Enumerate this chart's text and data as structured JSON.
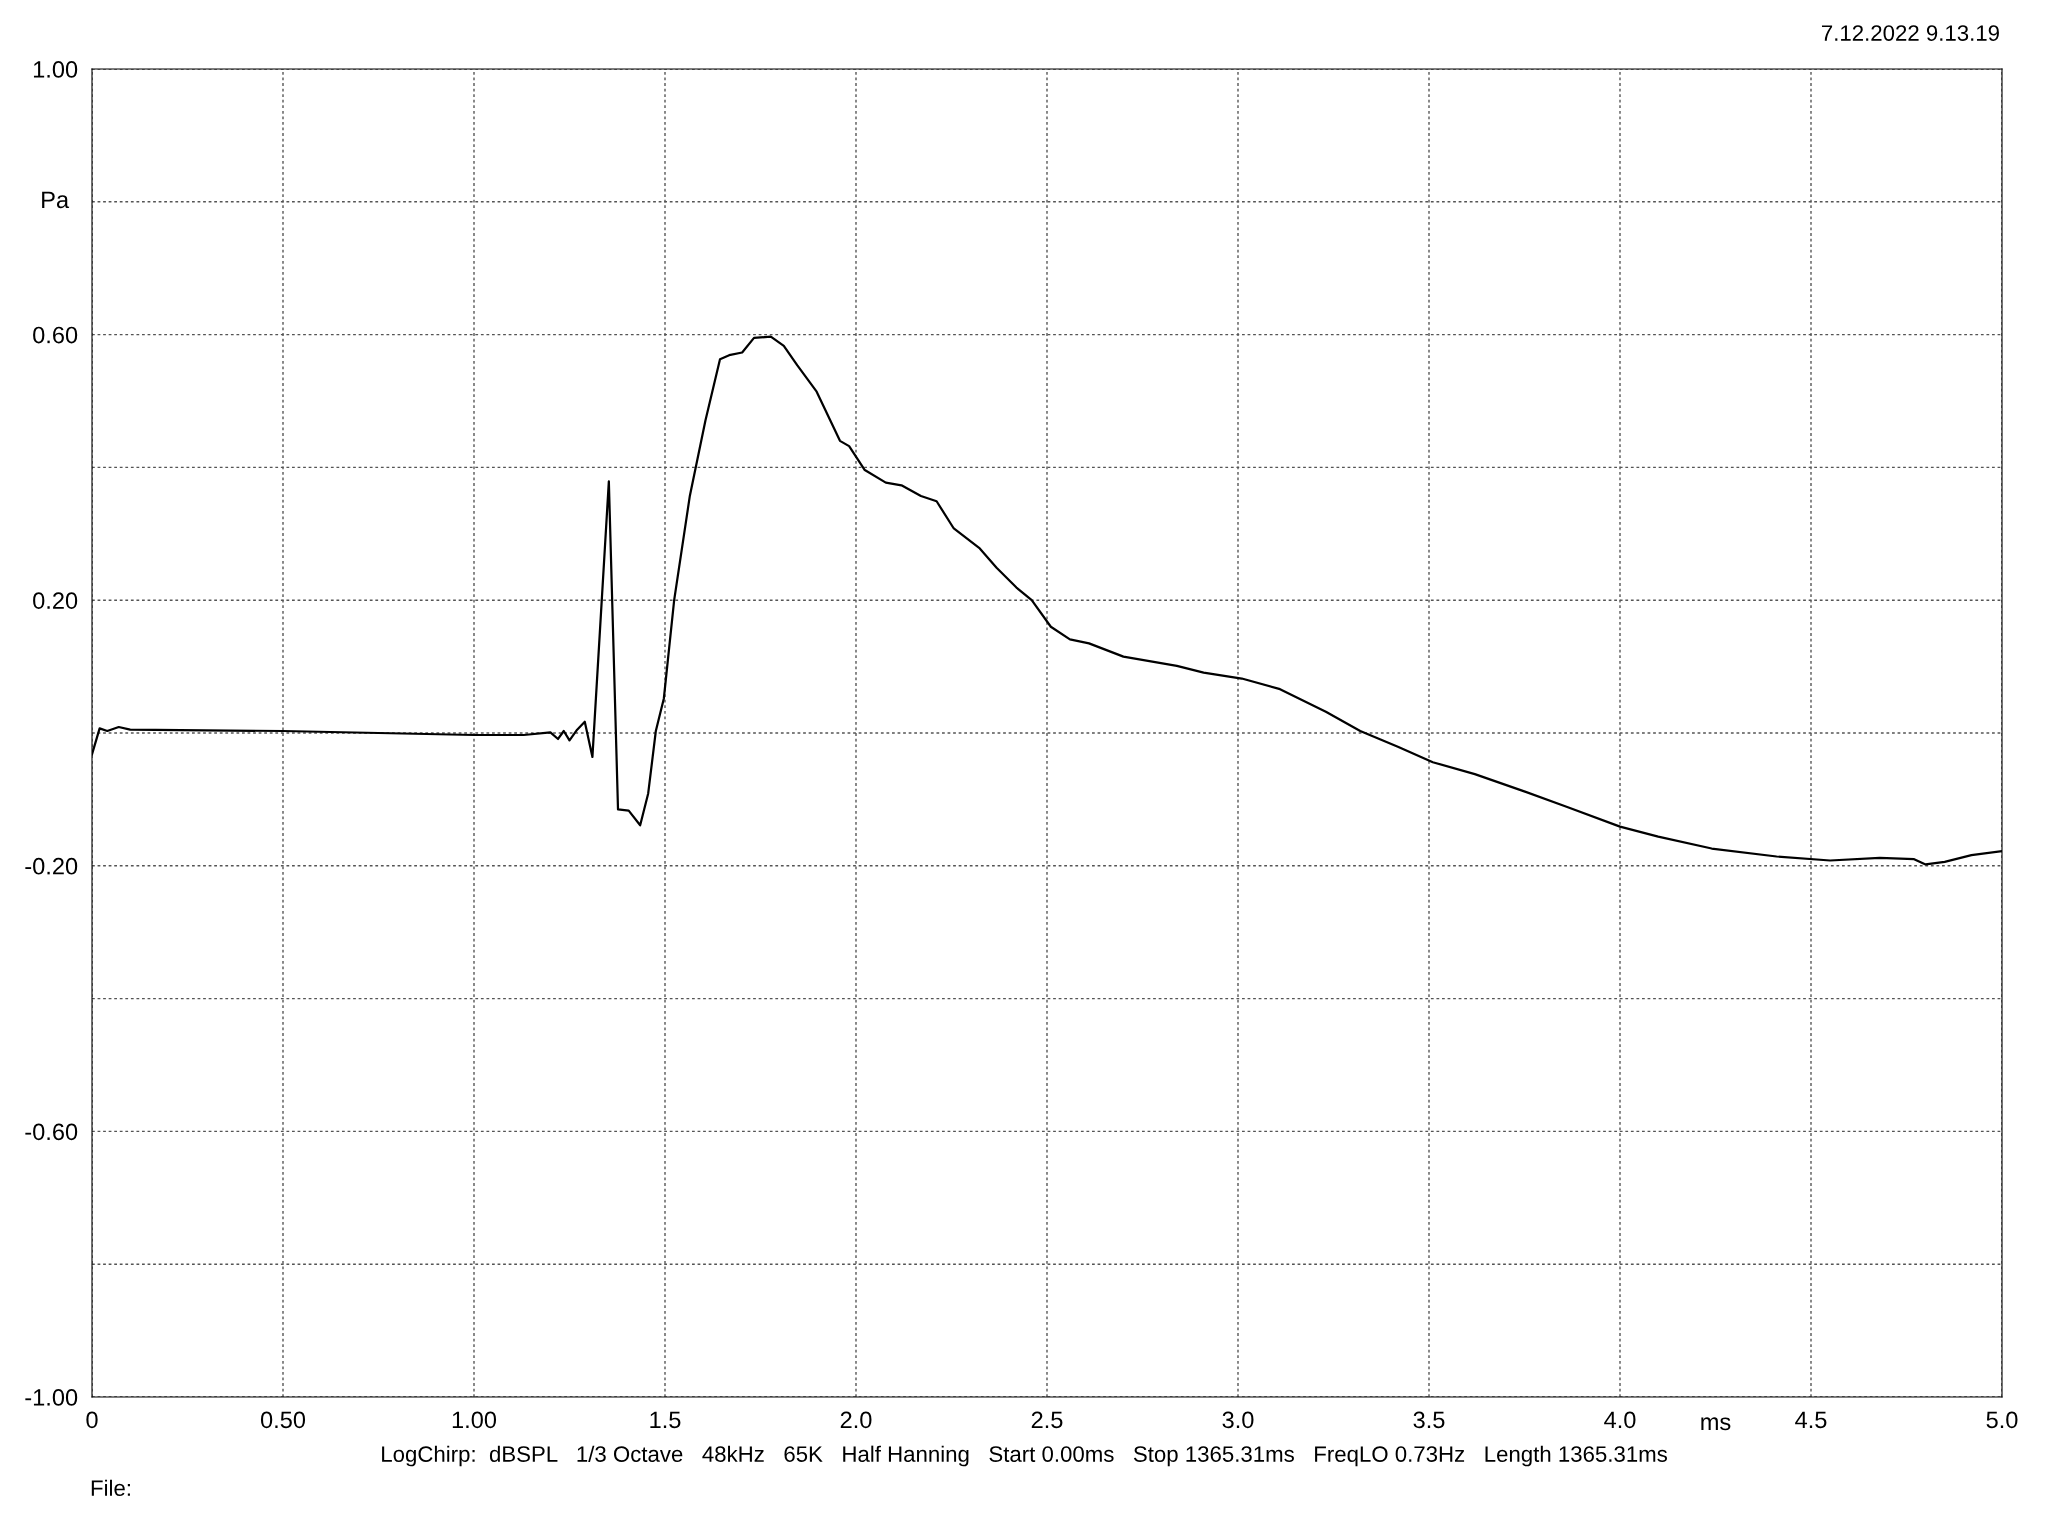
{
  "chart_data": {
    "type": "line",
    "xlabel": "ms",
    "ylabel": "Pa",
    "annotations": [
      "7.12.2022 9.13.19",
      "LogChirp:  dBSPL   1/3 Octave   48kHz   65K   Half Hanning   Start 0.00ms   Stop 1365.31ms   FreqLO 0.73Hz   Length 1365.31ms",
      "File:"
    ],
    "x": [
      0,
      0.02,
      0.04,
      0.07,
      0.1,
      0.5,
      1.0,
      1.13,
      1.2,
      1.22,
      1.235,
      1.25,
      1.27,
      1.29,
      1.31,
      1.353,
      1.377,
      1.405,
      1.435,
      1.456,
      1.476,
      1.497,
      1.524,
      1.565,
      1.606,
      1.644,
      1.668,
      1.702,
      1.733,
      1.777,
      1.811,
      1.846,
      1.897,
      1.958,
      1.982,
      2.023,
      2.078,
      2.119,
      2.17,
      2.211,
      2.256,
      2.324,
      2.368,
      2.42,
      2.46,
      2.51,
      2.56,
      2.61,
      2.7,
      2.84,
      2.91,
      3.01,
      3.11,
      3.23,
      3.32,
      3.42,
      3.51,
      3.62,
      3.74,
      3.86,
      4.0,
      4.1,
      4.24,
      4.41,
      4.55,
      4.68,
      4.77,
      4.8,
      4.85,
      4.92,
      5.0
    ],
    "series": [
      {
        "color": "#000000",
        "values": [
          -0.032,
          0.007,
          0.003,
          0.009,
          0.005,
          0.003,
          -0.003,
          -0.003,
          0.001,
          -0.009,
          0.003,
          -0.011,
          0.005,
          0.017,
          -0.036,
          0.379,
          -0.115,
          -0.117,
          -0.139,
          -0.091,
          0.003,
          0.052,
          0.2,
          0.357,
          0.471,
          0.563,
          0.569,
          0.573,
          0.595,
          0.597,
          0.583,
          0.554,
          0.514,
          0.44,
          0.432,
          0.396,
          0.377,
          0.373,
          0.357,
          0.349,
          0.308,
          0.278,
          0.249,
          0.219,
          0.2,
          0.16,
          0.141,
          0.135,
          0.115,
          0.101,
          0.091,
          0.082,
          0.066,
          0.032,
          0.003,
          -0.021,
          -0.044,
          -0.062,
          -0.086,
          -0.111,
          -0.141,
          -0.156,
          -0.174,
          -0.186,
          -0.192,
          -0.188,
          -0.19,
          -0.198,
          -0.194,
          -0.184,
          -0.178
        ]
      }
    ],
    "xlim": [
      0,
      5
    ],
    "ylim": [
      -1,
      1
    ],
    "xticks": [
      0,
      {
        "value": 0.5,
        "label": "0.50"
      },
      {
        "value": 1,
        "label": "1.00"
      },
      1.5,
      {
        "value": 2,
        "label": "2.0"
      },
      2.5,
      {
        "value": 3,
        "label": "3.0"
      },
      3.5,
      {
        "value": 4,
        "label": "4.0"
      },
      4.5,
      {
        "value": 5,
        "label": "5.0"
      }
    ],
    "yticks": [
      {
        "value": -1,
        "label": "-1.00"
      },
      {
        "value": -0.8,
        "label": null
      },
      {
        "value": -0.6,
        "label": "-0.60"
      },
      {
        "value": -0.4,
        "label": null
      },
      {
        "value": -0.2,
        "label": "-0.20"
      },
      {
        "value": 0,
        "label": null
      },
      {
        "value": 0.2,
        "label": "0.20"
      },
      {
        "value": 0.4,
        "label": null
      },
      {
        "value": 0.6,
        "label": "0.60"
      },
      {
        "value": 0.8,
        "label": null
      },
      {
        "value": 1,
        "label": "1.00"
      }
    ],
    "grid": true,
    "line_style": "solid",
    "marker": "none"
  }
}
